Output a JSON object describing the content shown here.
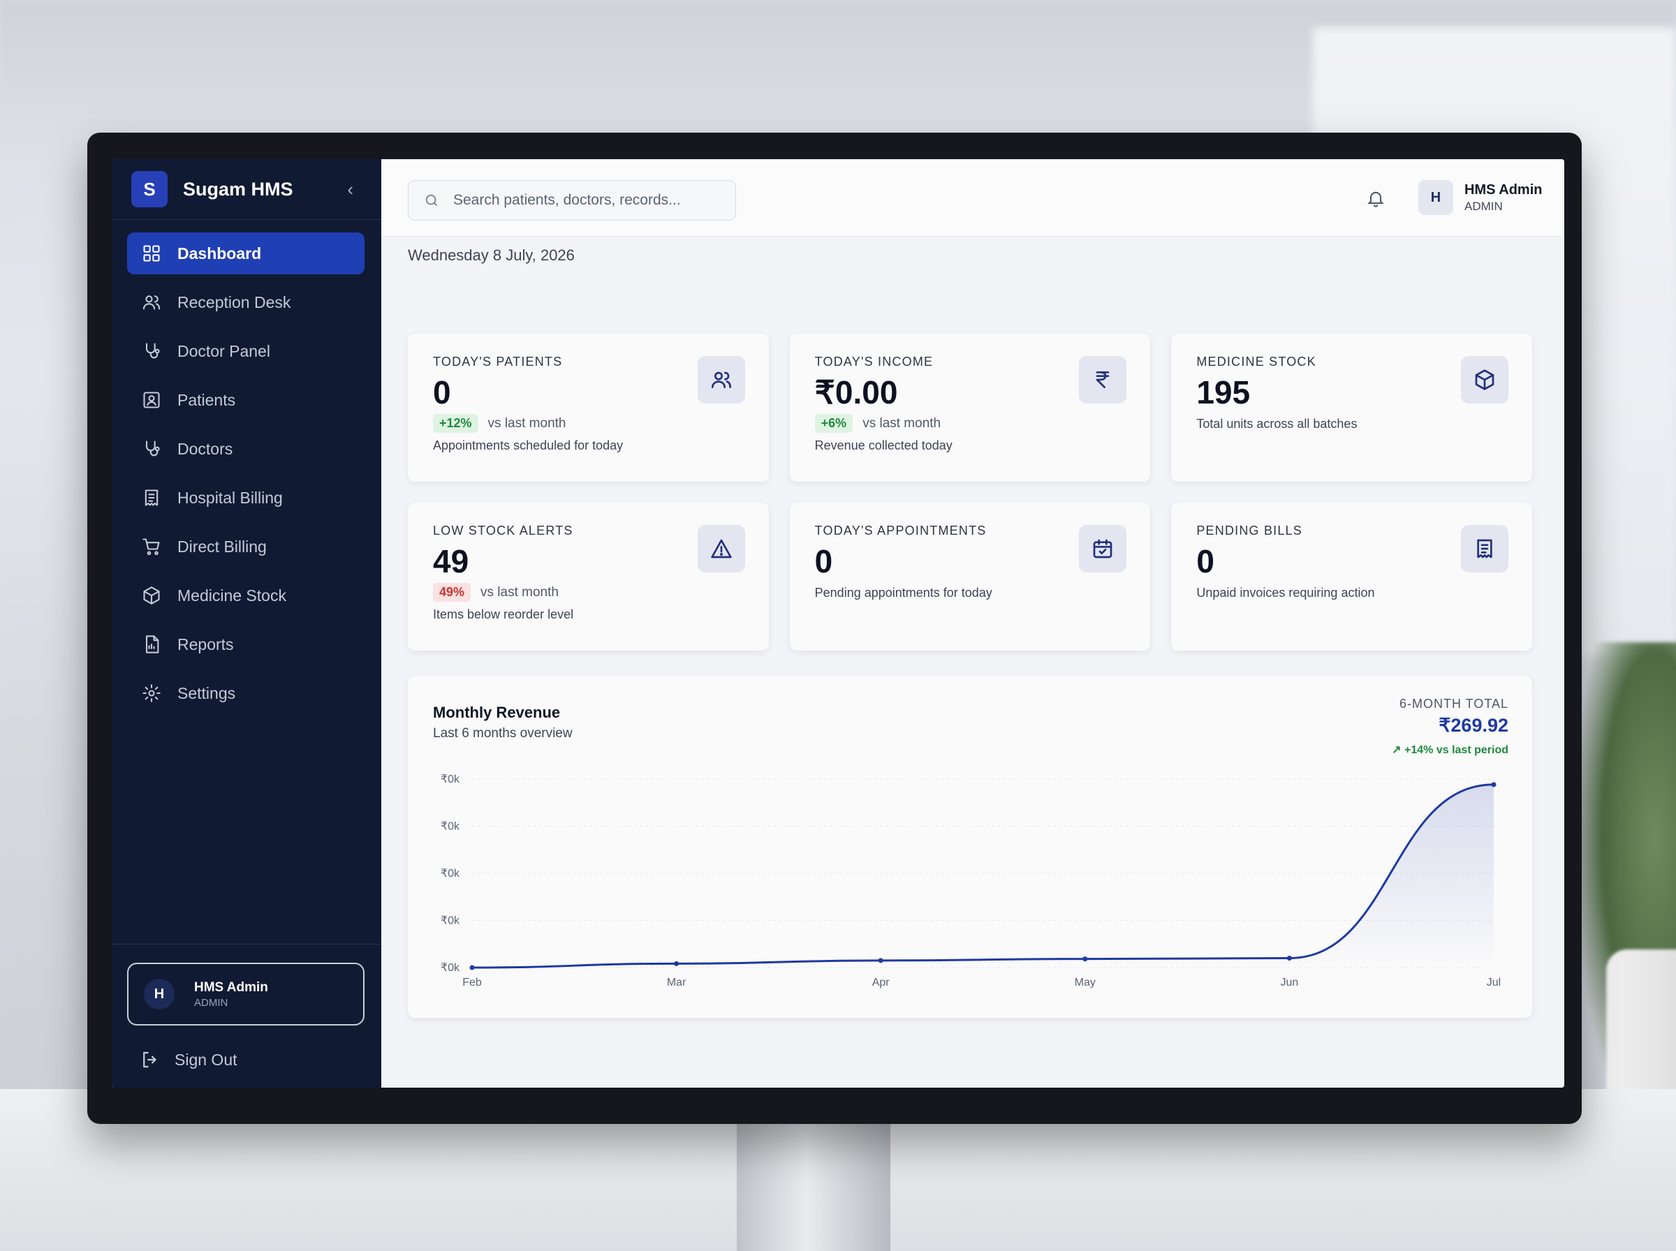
{
  "brand": {
    "logo_letter": "S",
    "name": "Sugam HMS",
    "collapse_icon": "chevron-left-icon"
  },
  "sidebar": {
    "items": [
      {
        "label": "Dashboard",
        "icon": "grid-icon",
        "active": true
      },
      {
        "label": "Reception Desk",
        "icon": "users-icon"
      },
      {
        "label": "Doctor Panel",
        "icon": "stethoscope-icon"
      },
      {
        "label": "Patients",
        "icon": "patient-icon"
      },
      {
        "label": "Doctors",
        "icon": "stethoscope-icon"
      },
      {
        "label": "Hospital Billing",
        "icon": "receipt-icon"
      },
      {
        "label": "Direct Billing",
        "icon": "cart-icon"
      },
      {
        "label": "Medicine Stock",
        "icon": "box-icon"
      },
      {
        "label": "Reports",
        "icon": "report-icon"
      },
      {
        "label": "Settings",
        "icon": "gear-icon"
      }
    ],
    "user": {
      "initial": "H",
      "name": "HMS Admin",
      "role": "ADMIN"
    },
    "sign_out": "Sign Out"
  },
  "topbar": {
    "search_placeholder": "Search patients, doctors, records...",
    "user": {
      "initial": "H",
      "name": "HMS Admin",
      "role": "ADMIN"
    }
  },
  "date": "Wednesday 8 July, 2026",
  "cards": [
    {
      "title": "TODAY'S PATIENTS",
      "value": "0",
      "delta": "+12%",
      "delta_dir": "up",
      "delta_text": "vs last month",
      "sub": "Appointments scheduled for today",
      "icon": "users-icon"
    },
    {
      "title": "TODAY'S INCOME",
      "value": "₹0.00",
      "delta": "+6%",
      "delta_dir": "up",
      "delta_text": "vs last month",
      "sub": "Revenue collected today",
      "icon": "rupee-icon"
    },
    {
      "title": "MEDICINE STOCK",
      "value": "195",
      "sub": "Total units across all batches",
      "icon": "box-icon"
    },
    {
      "title": "LOW STOCK ALERTS",
      "value": "49",
      "delta": "49%",
      "delta_dir": "down",
      "delta_text": "vs last month",
      "sub": "Items below reorder level",
      "icon": "alert-icon"
    },
    {
      "title": "TODAY'S APPOINTMENTS",
      "value": "0",
      "sub": "Pending appointments for today",
      "icon": "calendar-icon"
    },
    {
      "title": "PENDING BILLS",
      "value": "0",
      "sub": "Unpaid invoices requiring action",
      "icon": "receipt-icon"
    }
  ],
  "revenue": {
    "title": "Monthly Revenue",
    "subtitle": "Last 6 months overview",
    "total_label": "6-MONTH TOTAL",
    "total_value": "₹269.92",
    "total_change": "+14% vs last period",
    "accent": "#1f3aa0"
  },
  "chart_data": {
    "type": "area",
    "x": [
      "Feb",
      "Mar",
      "Apr",
      "May",
      "Jun",
      "Jul"
    ],
    "y_tick_labels": [
      "₹0k",
      "₹0k",
      "₹0k",
      "₹0k",
      "₹0k"
    ],
    "values": [
      0,
      5,
      9,
      11,
      12,
      233
    ],
    "ylim": [
      0,
      240
    ],
    "grid": true,
    "color": "#1f3aa0"
  }
}
